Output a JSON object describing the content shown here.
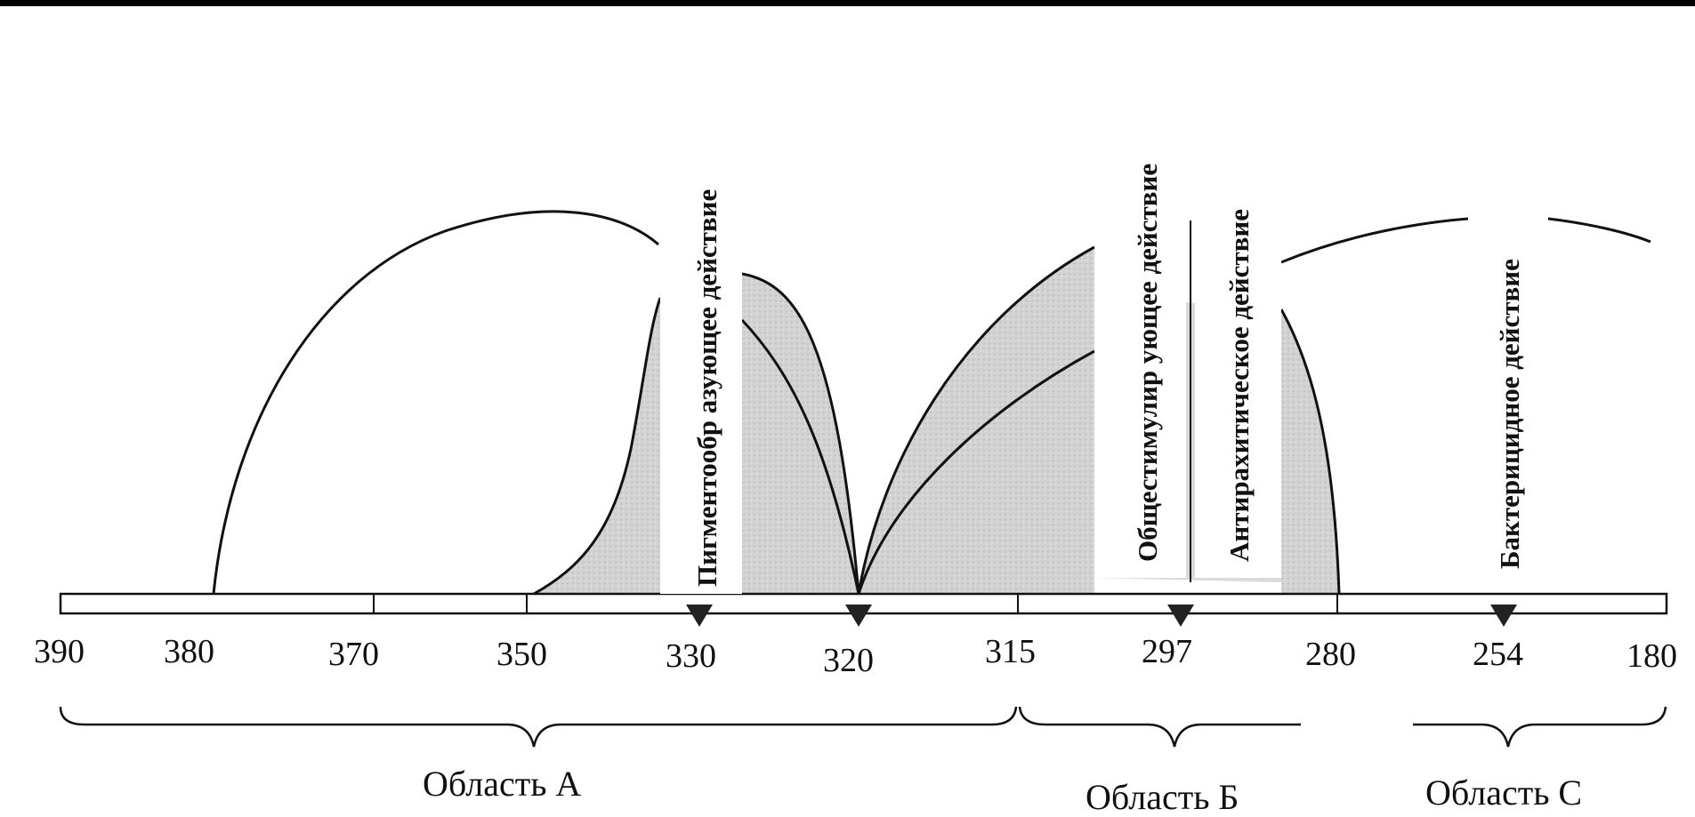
{
  "tick_labels": [
    "390",
    "380",
    "370",
    "350",
    "330",
    "320",
    "315",
    "297",
    "280",
    "254",
    "180"
  ],
  "regions": {
    "a": "Область А",
    "b": "Область Б",
    "c": "Область С"
  },
  "effects": {
    "pigment": "Пигментообр азующее   действие",
    "stimulating": "Общестимулир ующее   действие",
    "antirachitic": "Антирахитическое   действие",
    "bactericidal": "Бактерицидное   действие"
  },
  "marker_wavelengths": [
    330,
    320,
    297,
    254
  ],
  "colors": {
    "line": "#111111",
    "shade": "#c9c9c9",
    "background": "#ffffff",
    "frame": "#000000"
  }
}
